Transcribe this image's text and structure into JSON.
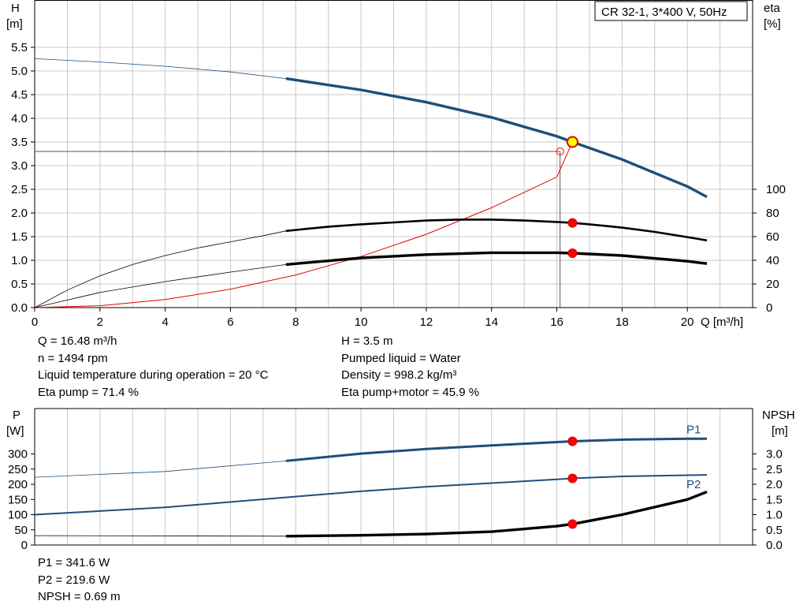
{
  "colors": {
    "head": "#1f4e79",
    "eta": "#000000",
    "system": "#e60000",
    "grid": "#c8c8c8",
    "point_fill": "#ff0000",
    "duty_fill": "#ffff00",
    "p1": "#1f4e79",
    "p2": "#1f4e79",
    "npsh": "#000000"
  },
  "chart_data": [
    {
      "type": "line",
      "title": "CR 32-1, 3*400 V, 50Hz",
      "x_axis": {
        "label": "Q [m³/h]",
        "range": [
          0,
          22
        ],
        "ticks": [
          0,
          2,
          4,
          6,
          8,
          10,
          12,
          14,
          16,
          18,
          20
        ],
        "tick_labels": [
          "0",
          "2",
          "4",
          "6",
          "8",
          "10",
          "12",
          "14",
          "16",
          "18",
          "20"
        ]
      },
      "y_axis_left": {
        "label_line1": "H",
        "label_line2": "[m]",
        "range": [
          0,
          5.5
        ],
        "ticks": [
          0,
          0.5,
          1,
          1.5,
          2,
          2.5,
          3,
          3.5,
          4,
          4.5,
          5,
          5.5
        ],
        "tick_labels": [
          "0.0",
          "0.5",
          "1.0",
          "1.5",
          "2.0",
          "2.5",
          "3.0",
          "3.5",
          "4.0",
          "4.5",
          "5.0",
          "5.5"
        ]
      },
      "y_axis_right": {
        "label_line1": "eta",
        "label_line2": "[%]",
        "range": [
          0,
          220
        ],
        "ticks": [
          0,
          20,
          40,
          60,
          80,
          100
        ],
        "tick_labels": [
          "0",
          "20",
          "40",
          "60",
          "80",
          "100"
        ]
      },
      "grid": true,
      "series": [
        {
          "id": "head",
          "axis": "left",
          "bold_from": 7.7,
          "x": [
            0,
            2,
            4,
            6,
            7.7,
            10,
            12,
            14,
            16,
            16.48,
            18,
            20,
            20.6
          ],
          "y": [
            5.26,
            5.19,
            5.1,
            4.98,
            4.84,
            4.6,
            4.34,
            4.02,
            3.62,
            3.5,
            3.13,
            2.56,
            2.34
          ]
        },
        {
          "id": "eta-pump",
          "axis": "left",
          "bold_from": 7.7,
          "x": [
            0,
            1,
            2,
            3,
            4,
            5,
            6,
            7,
            7.7,
            9,
            10,
            11,
            12,
            13,
            14,
            15,
            16,
            16.48,
            17,
            18,
            19,
            20,
            20.6
          ],
          "y": [
            0,
            0.37,
            0.67,
            0.91,
            1.1,
            1.26,
            1.39,
            1.52,
            1.62,
            1.71,
            1.76,
            1.8,
            1.84,
            1.86,
            1.86,
            1.84,
            1.81,
            1.79,
            1.76,
            1.69,
            1.6,
            1.49,
            1.42
          ]
        },
        {
          "id": "eta-pump-motor",
          "axis": "left",
          "bold_from": 7.7,
          "x": [
            0,
            2,
            4,
            6,
            7.7,
            10,
            12,
            14,
            16,
            16.48,
            18,
            20,
            20.6
          ],
          "y": [
            0,
            0.32,
            0.55,
            0.75,
            0.91,
            1.05,
            1.12,
            1.16,
            1.16,
            1.15,
            1.1,
            0.98,
            0.93
          ]
        },
        {
          "id": "system-curve",
          "axis": "left",
          "bold_from": null,
          "x": [
            0,
            2,
            4,
            6,
            8,
            10,
            12,
            14,
            16,
            16.48
          ],
          "y": [
            0,
            0.04,
            0.17,
            0.39,
            0.69,
            1.08,
            1.55,
            2.11,
            2.76,
            3.5
          ]
        }
      ],
      "reference_line": {
        "x": 16.1,
        "y": 3.3
      },
      "duty_point": {
        "x": 16.48,
        "y": 3.5
      },
      "operating_points": [
        {
          "x": 16.48,
          "y": 1.79
        },
        {
          "x": 16.48,
          "y": 1.15
        }
      ]
    },
    {
      "type": "line",
      "x_axis": {
        "range": [
          0,
          22
        ]
      },
      "y_axis_left": {
        "label_line1": "P",
        "label_line2": "[W]",
        "range": [
          0,
          400
        ],
        "ticks": [
          0,
          50,
          100,
          150,
          200,
          250,
          300
        ],
        "tick_labels": [
          "0",
          "50",
          "100",
          "150",
          "200",
          "250",
          "300"
        ]
      },
      "y_axis_right": {
        "label_line1": "NPSH",
        "label_line2": "[m]",
        "range": [
          0,
          4
        ],
        "ticks": [
          0,
          0.5,
          1,
          1.5,
          2,
          2.5,
          3
        ],
        "tick_labels": [
          "0.0",
          "0.5",
          "1.0",
          "1.5",
          "2.0",
          "2.5",
          "3.0"
        ]
      },
      "grid": true,
      "series": [
        {
          "id": "p1",
          "name": "P1",
          "axis": "left",
          "bold_from": 7.7,
          "x": [
            0,
            4,
            7.7,
            10,
            12,
            14,
            16,
            16.48,
            18,
            20,
            20.6
          ],
          "y": [
            223,
            242,
            277,
            301,
            316,
            328,
            339,
            341.6,
            347,
            350,
            350
          ]
        },
        {
          "id": "p2",
          "name": "P2",
          "axis": "left",
          "bold_from": null,
          "x": [
            0,
            4,
            7.7,
            10,
            12,
            14,
            16,
            16.48,
            18,
            20,
            20.6
          ],
          "y": [
            100,
            124,
            157,
            177,
            192,
            204,
            216,
            219.6,
            226,
            230,
            231
          ]
        },
        {
          "id": "npsh",
          "axis": "right",
          "bold_from": 7.7,
          "x": [
            0,
            7.7,
            10,
            12,
            14,
            16,
            16.48,
            18,
            20,
            20.6
          ],
          "y": [
            0.31,
            0.29,
            0.32,
            0.36,
            0.44,
            0.62,
            0.69,
            1.0,
            1.5,
            1.75
          ]
        }
      ],
      "operating_points": [
        {
          "x": 16.48,
          "y": 341.6,
          "axis": "left"
        },
        {
          "x": 16.48,
          "y": 219.6,
          "axis": "left"
        },
        {
          "x": 16.48,
          "y": 0.69,
          "axis": "right"
        }
      ]
    }
  ],
  "info_main_left": [
    "Q = 16.48 m³/h",
    "n = 1494 rpm",
    "Liquid temperature during operation = 20 °C",
    "Eta pump = 71.4 %"
  ],
  "info_main_right": [
    "H = 3.5 m",
    "Pumped liquid = Water",
    "Density = 998.2 kg/m³",
    "Eta pump+motor = 45.9 %"
  ],
  "info_power": [
    "P1 = 341.6 W",
    "P2 = 219.6 W",
    "NPSH = 0.69 m"
  ]
}
